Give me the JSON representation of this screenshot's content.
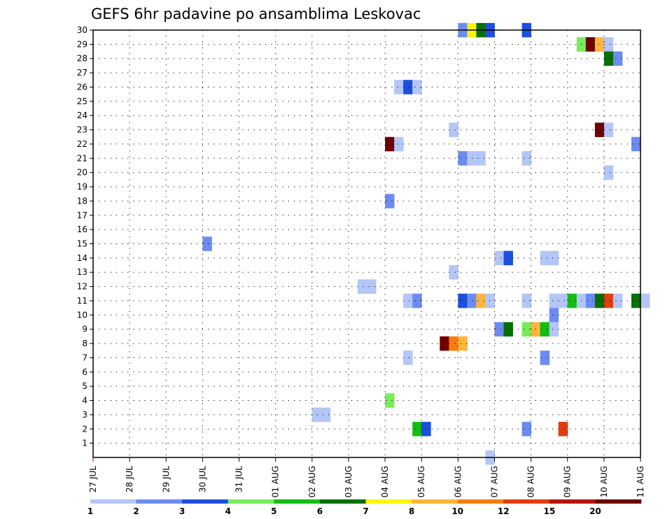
{
  "chart_data": {
    "type": "heatmap",
    "title": "GEFS 6hr padavine po ansamblima Leskovac",
    "xlabel": "",
    "ylabel": "",
    "x_ticks": [
      "27 JUL",
      "28 JUL",
      "29 JUL",
      "30 JUL",
      "31 JUL",
      "01 AUG",
      "02 AUG",
      "03 AUG",
      "04 AUG",
      "05 AUG",
      "06 AUG",
      "07 AUG",
      "08 AUG",
      "09 AUG",
      "10 AUG",
      "11 AUG"
    ],
    "y_ticks": [
      "1",
      "2",
      "3",
      "4",
      "5",
      "6",
      "7",
      "8",
      "9",
      "10",
      "11",
      "12",
      "13",
      "14",
      "15",
      "16",
      "17",
      "18",
      "19",
      "20",
      "21",
      "22",
      "23",
      "24",
      "25",
      "26",
      "27",
      "28",
      "29",
      "30"
    ],
    "ylim": [
      0,
      30
    ],
    "grid": true,
    "colorbar": {
      "labels": [
        "1",
        "2",
        "3",
        "4",
        "5",
        "6",
        "7",
        "8",
        "10",
        "12",
        "15",
        "20"
      ],
      "colors": [
        "#b4c6f8",
        "#6c8cf2",
        "#1d4fdc",
        "#78ec5a",
        "#12be12",
        "#057005",
        "#fff500",
        "#ffb43c",
        "#f57d10",
        "#e13c0e",
        "#b41408",
        "#6e0000"
      ]
    },
    "cells_note_value_key": "each cell: [member, 6h step index from 27 JUL 00Z, precipitation class 0-11]",
    "cells": [
      [
        30,
        40,
        1
      ],
      [
        30,
        41,
        6
      ],
      [
        30,
        42,
        5
      ],
      [
        30,
        43,
        2
      ],
      [
        30,
        47,
        2
      ],
      [
        29,
        53,
        3
      ],
      [
        29,
        54,
        11
      ],
      [
        29,
        55,
        7
      ],
      [
        29,
        56,
        0
      ],
      [
        28,
        56,
        5
      ],
      [
        28,
        57,
        1
      ],
      [
        26,
        33,
        0
      ],
      [
        26,
        34,
        2
      ],
      [
        26,
        35,
        0
      ],
      [
        23,
        39,
        0
      ],
      [
        23,
        55,
        11
      ],
      [
        23,
        56,
        0
      ],
      [
        22,
        32,
        11
      ],
      [
        22,
        33,
        0
      ],
      [
        22,
        59,
        1
      ],
      [
        21,
        40,
        1
      ],
      [
        21,
        41,
        0
      ],
      [
        21,
        42,
        0
      ],
      [
        21,
        47,
        0
      ],
      [
        20,
        56,
        0
      ],
      [
        18,
        32,
        1
      ],
      [
        15,
        12,
        1
      ],
      [
        14,
        44,
        0
      ],
      [
        14,
        45,
        2
      ],
      [
        14,
        49,
        0
      ],
      [
        14,
        50,
        0
      ],
      [
        13,
        39,
        0
      ],
      [
        12,
        29,
        0
      ],
      [
        12,
        30,
        0
      ],
      [
        11,
        34,
        0
      ],
      [
        11,
        35,
        1
      ],
      [
        11,
        40,
        2
      ],
      [
        11,
        41,
        1
      ],
      [
        11,
        42,
        7
      ],
      [
        11,
        43,
        0
      ],
      [
        11,
        47,
        0
      ],
      [
        11,
        50,
        0
      ],
      [
        11,
        51,
        0
      ],
      [
        11,
        52,
        4
      ],
      [
        11,
        53,
        0
      ],
      [
        11,
        54,
        1
      ],
      [
        11,
        55,
        5
      ],
      [
        11,
        56,
        9
      ],
      [
        11,
        57,
        0
      ],
      [
        11,
        59,
        5
      ],
      [
        11,
        60,
        0
      ],
      [
        10,
        50,
        1
      ],
      [
        9,
        44,
        1
      ],
      [
        9,
        45,
        5
      ],
      [
        9,
        47,
        3
      ],
      [
        9,
        48,
        7
      ],
      [
        9,
        49,
        4
      ],
      [
        9,
        50,
        0
      ],
      [
        8,
        38,
        11
      ],
      [
        8,
        39,
        8
      ],
      [
        8,
        40,
        7
      ],
      [
        7,
        34,
        0
      ],
      [
        7,
        49,
        1
      ],
      [
        4,
        32,
        3
      ],
      [
        3,
        24,
        0
      ],
      [
        3,
        25,
        0
      ],
      [
        2,
        35,
        4
      ],
      [
        2,
        36,
        2
      ],
      [
        2,
        47,
        1
      ],
      [
        2,
        51,
        9
      ],
      [
        0,
        43,
        0
      ]
    ]
  }
}
